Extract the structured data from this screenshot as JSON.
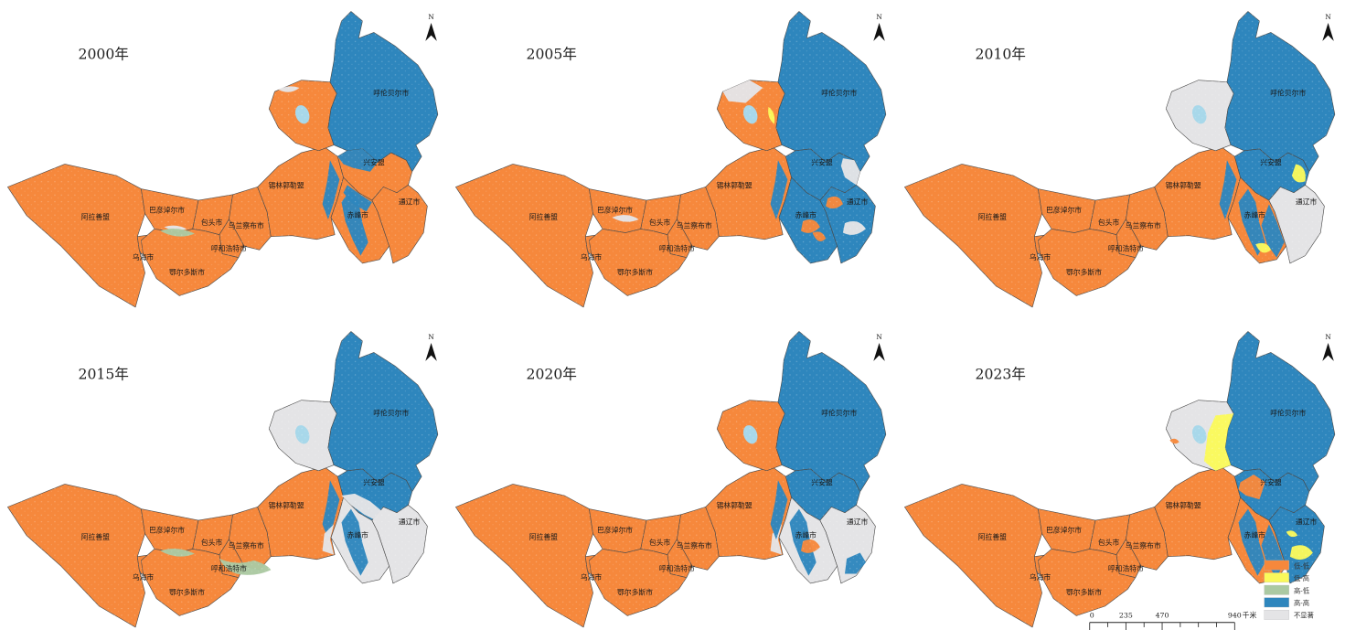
{
  "north_label": "N",
  "colors": {
    "ll": "#F6883C",
    "lh": "#FAF95B",
    "hl": "#ABC9A2",
    "hh": "#2E86BD",
    "ns": "#E4E4E6",
    "lake": "#A8D8EA",
    "border": "#4a4a4a",
    "label": "#1a1a1a"
  },
  "legend": {
    "items": [
      {
        "key": "ll",
        "label": "低-低"
      },
      {
        "key": "lh",
        "label": "低-高"
      },
      {
        "key": "hl",
        "label": "高-低"
      },
      {
        "key": "hh",
        "label": "高-高"
      },
      {
        "key": "ns",
        "label": "不显著"
      }
    ]
  },
  "scalebar": {
    "tick_labels": [
      "0",
      "235",
      "470",
      "940"
    ],
    "unit": "千米"
  },
  "region_names": {
    "alxa": "阿拉善盟",
    "bayannur": "巴彦淖尔市",
    "baotou": "包头市",
    "ulanqab": "乌兰察布市",
    "hohhot": "呼和浩特市",
    "wuhai": "乌海市",
    "ordos": "鄂尔多斯市",
    "xilingol": "锡林郭勒盟",
    "chifeng": "赤峰市",
    "tongliao": "通辽市",
    "hinggan": "兴安盟",
    "hulunbuir": "呼伦贝尔市"
  },
  "panels": [
    {
      "year": "2000年",
      "show_legend": false,
      "fills": {
        "alxa": "ll",
        "bayannur": "ll",
        "baotou": "ll",
        "ulanqab": "ll",
        "hohhot": "ll",
        "wuhai": "ll",
        "ordos": "ll",
        "xilingol": "ll",
        "hinggan": "ll",
        "chifeng": "ll",
        "tongliao": "ll",
        "hulun_west": "ll",
        "hulunbuir": "hh"
      },
      "patches": [
        {
          "id": "hetao_gray",
          "c": "ns"
        },
        {
          "id": "hetao_green",
          "c": "hl"
        },
        {
          "id": "wing_gray_top",
          "c": "ns"
        },
        {
          "id": "hinggan_n_blue",
          "c": "hh"
        },
        {
          "id": "xilingol_e_blue",
          "c": "hh"
        },
        {
          "id": "chifeng_n_blue",
          "c": "hh"
        },
        {
          "id": "chifeng_blue_streak",
          "c": "hh"
        }
      ]
    },
    {
      "year": "2005年",
      "show_legend": false,
      "fills": {
        "alxa": "ll",
        "bayannur": "ll",
        "baotou": "ll",
        "ulanqab": "ll",
        "hohhot": "ll",
        "wuhai": "ll",
        "ordos": "ll",
        "xilingol": "ll",
        "hinggan": "hh",
        "chifeng": "hh",
        "tongliao": "hh",
        "hulun_west": "ll",
        "hulunbuir": "hh"
      },
      "patches": [
        {
          "id": "bayannur_gray",
          "c": "ns"
        },
        {
          "id": "wing_graycorner",
          "c": "ns"
        },
        {
          "id": "wing_edge_yellow",
          "c": "lh"
        },
        {
          "id": "hinggan_ne_gray",
          "c": "ns"
        },
        {
          "id": "xilingol_e_blue",
          "c": "hh"
        },
        {
          "id": "chifeng_orange_c",
          "c": "ll"
        },
        {
          "id": "chifeng_orange_s",
          "c": "ll"
        },
        {
          "id": "tongliao_orange_nw",
          "c": "ll"
        },
        {
          "id": "tongliao_gray_c",
          "c": "ns"
        }
      ]
    },
    {
      "year": "2010年",
      "show_legend": false,
      "fills": {
        "alxa": "ll",
        "bayannur": "ll",
        "baotou": "ll",
        "ulanqab": "ll",
        "hohhot": "ll",
        "wuhai": "ll",
        "ordos": "ll",
        "xilingol": "ll",
        "hinggan": "hh",
        "chifeng": "ll",
        "tongliao": "ns",
        "hulun_west": "ns",
        "hulunbuir": "hh"
      },
      "patches": [
        {
          "id": "hinggan_yellow",
          "c": "lh"
        },
        {
          "id": "xilingol_e_blue",
          "c": "hh"
        },
        {
          "id": "chifeng_blue_streak",
          "c": "hh"
        },
        {
          "id": "chifeng_e_blue",
          "c": "hh"
        },
        {
          "id": "chifeng_s_yellow",
          "c": "lh"
        }
      ]
    },
    {
      "year": "2015年",
      "show_legend": false,
      "fills": {
        "alxa": "ll",
        "bayannur": "ll",
        "baotou": "ll",
        "ulanqab": "ll",
        "hohhot": "ll",
        "wuhai": "ll",
        "ordos": "ll",
        "xilingol": "ll",
        "hinggan": "hh",
        "chifeng": "ns",
        "tongliao": "ns",
        "hulun_west": "ns",
        "hulunbuir": "hh"
      },
      "patches": [
        {
          "id": "hetao_green",
          "c": "hl"
        },
        {
          "id": "hohhot_green_band",
          "c": "hl"
        },
        {
          "id": "hinggan_s_gray",
          "c": "ns"
        },
        {
          "id": "xilingol_e_blue",
          "c": "hh"
        },
        {
          "id": "xilingol_e_gray",
          "c": "ns"
        },
        {
          "id": "chifeng_blue_streak",
          "c": "hh"
        }
      ]
    },
    {
      "year": "2020年",
      "show_legend": false,
      "fills": {
        "alxa": "ll",
        "bayannur": "ll",
        "baotou": "ll",
        "ulanqab": "ll",
        "hohhot": "ll",
        "wuhai": "ll",
        "ordos": "ll",
        "xilingol": "ll",
        "hinggan": "hh",
        "chifeng": "ns",
        "tongliao": "ns",
        "hulun_west": "ll",
        "hulunbuir": "hh"
      },
      "patches": [
        {
          "id": "xilingol_e_gray",
          "c": "ns"
        },
        {
          "id": "xilingol_e_blue",
          "c": "hh"
        },
        {
          "id": "chifeng_blue_streak",
          "c": "hh"
        },
        {
          "id": "chifeng_orange_c",
          "c": "ll"
        },
        {
          "id": "tongliao_s_blue",
          "c": "hh"
        }
      ]
    },
    {
      "year": "2023年",
      "show_legend": true,
      "fills": {
        "alxa": "ll",
        "bayannur": "ll",
        "baotou": "ll",
        "ulanqab": "ll",
        "hohhot": "ll",
        "wuhai": "ll",
        "ordos": "ll",
        "xilingol": "ll",
        "hinggan": "hh",
        "chifeng": "ll",
        "tongliao": "hh",
        "hulun_west": "ns",
        "hulunbuir": "hh"
      },
      "patches": [
        {
          "id": "wing_yellow",
          "c": "lh"
        },
        {
          "id": "wing_orange_w",
          "c": "ll"
        },
        {
          "id": "hinggan_sw_orange",
          "c": "ll"
        },
        {
          "id": "chifeng_e_blue",
          "c": "hh"
        },
        {
          "id": "chifeng_blue_streak",
          "c": "hh"
        },
        {
          "id": "tongliao_yellow",
          "c": "lh"
        },
        {
          "id": "tongliao_yellow_n",
          "c": "lh"
        }
      ]
    }
  ]
}
